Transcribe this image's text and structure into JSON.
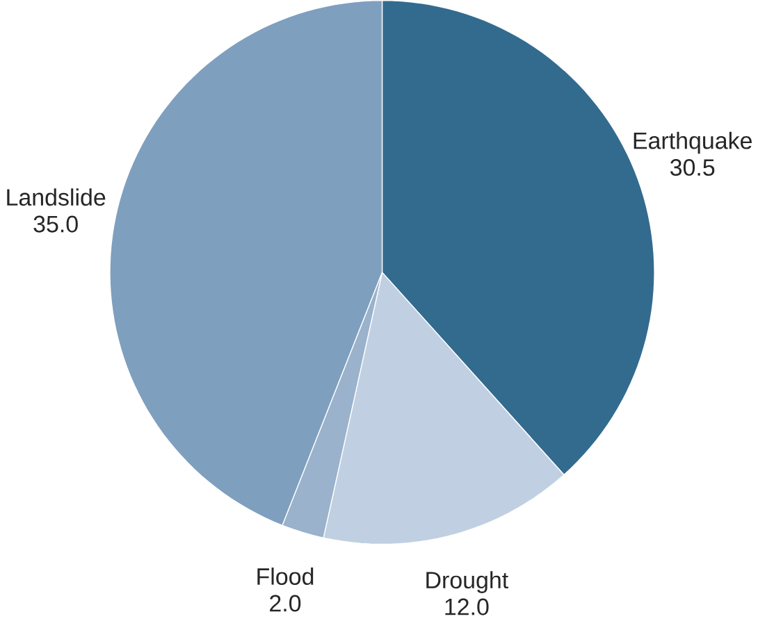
{
  "chart_data": {
    "type": "pie",
    "categories": [
      "Earthquake",
      "Drought",
      "Flood",
      "Landslide"
    ],
    "values": [
      30.5,
      12.0,
      2.0,
      35.0
    ],
    "colors": [
      "#336b8f",
      "#c0d0e2",
      "#9ab2cb",
      "#7f9fbf"
    ],
    "value_labels": [
      "30.5",
      "12.0",
      "2.0",
      "35.0"
    ]
  }
}
